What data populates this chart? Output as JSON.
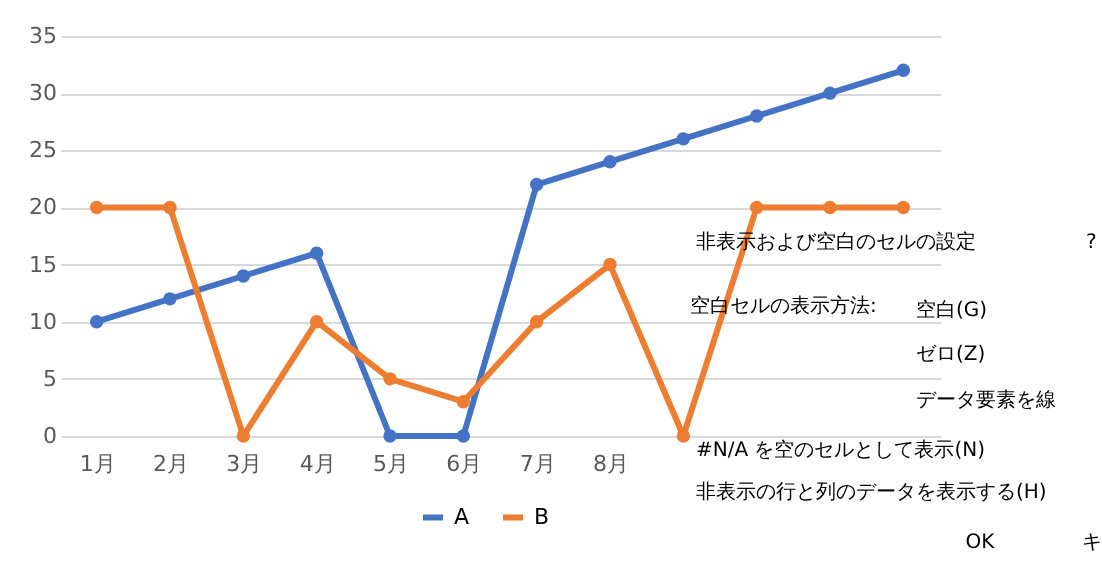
{
  "chart_data": {
    "type": "line",
    "categories": [
      "1月",
      "2月",
      "3月",
      "4月",
      "5月",
      "6月",
      "7月",
      "8月",
      null,
      null,
      null,
      null
    ],
    "series": [
      {
        "name": "A",
        "color": "#4472c4",
        "values": [
          10,
          12,
          14,
          16,
          0,
          0,
          22,
          24,
          26,
          28,
          30,
          32
        ]
      },
      {
        "name": "B",
        "color": "#ed7d31",
        "values": [
          20,
          20,
          0,
          10,
          5,
          3,
          10,
          15,
          0,
          20,
          20,
          20
        ]
      }
    ],
    "ylim": [
      0,
      35
    ],
    "yticks": [
      0,
      5,
      10,
      15,
      20,
      25,
      30,
      35
    ],
    "grid": "y",
    "legend": "bottom",
    "marker": "circle",
    "line_style": "solid",
    "annotations": [
      "非表示および空白のセルの設定",
      "?",
      "空白セルの表示方法:",
      "空白(G)",
      "ゼロ(Z)",
      "データ要素を線",
      "#N/A を空のセルとして表示(N)",
      "非表示の行と列のデータを表示する(H)",
      "OK",
      "キ"
    ]
  }
}
